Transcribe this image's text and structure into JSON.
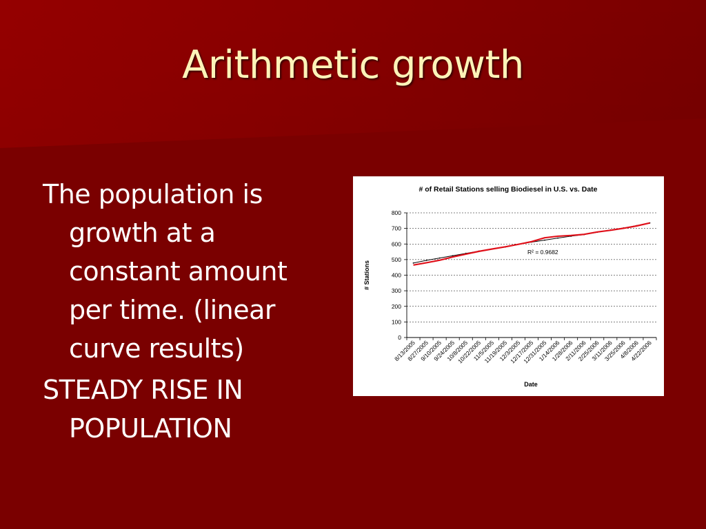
{
  "slide": {
    "title": "Arithmetic growth",
    "bullets": [
      "The population is growth at a constant amount per time. (linear curve results)",
      "STEADY RISE IN POPULATION"
    ]
  },
  "colors": {
    "background": "#7a0000",
    "title": "#fdf3b8",
    "text": "#ffffff",
    "data_line": "#000000",
    "trend_line": "#e0101a"
  },
  "chart_data": {
    "type": "line",
    "title": "# of Retail Stations selling Biodiesel in U.S. vs. Date",
    "xlabel": "Date",
    "ylabel": "# Stations",
    "ylim": [
      0,
      800
    ],
    "yticks": [
      "0",
      "100",
      "200",
      "300",
      "400",
      "500",
      "600",
      "700",
      "800"
    ],
    "grid": true,
    "categories": [
      "8/13/2005",
      "8/27/2005",
      "9/10/2005",
      "9/24/2005",
      "10/8/2005",
      "10/22/2005",
      "11/5/2005",
      "11/19/2005",
      "12/3/2005",
      "12/17/2005",
      "12/31/2005",
      "1/14/2006",
      "1/28/2006",
      "2/11/2006",
      "2/25/2006",
      "3/11/2006",
      "3/25/2006",
      "4/8/2006",
      "4/22/2006"
    ],
    "series": [
      {
        "values": [
          478,
          495,
          510,
          525,
          540,
          555,
          568,
          580,
          598,
          612,
          625,
          638,
          650,
          660,
          675,
          690,
          703,
          718,
          735
        ]
      }
    ],
    "trendline": {
      "type": "linear",
      "annotation": "R² = 0.9682",
      "values": [
        465,
        480,
        496,
        517,
        535,
        553,
        568,
        582,
        598,
        615,
        640,
        650,
        655,
        662,
        677,
        688,
        701,
        716,
        735
      ]
    }
  }
}
